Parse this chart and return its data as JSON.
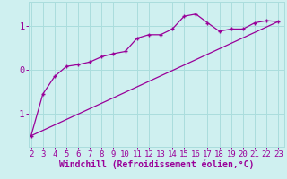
{
  "xlabel": "Windchill (Refroidissement éolien,°C)",
  "background_color": "#cff0f0",
  "line_color": "#990099",
  "grid_color": "#aadddd",
  "x_ticks": [
    2,
    3,
    4,
    5,
    6,
    7,
    8,
    9,
    10,
    11,
    12,
    13,
    14,
    15,
    16,
    17,
    18,
    19,
    20,
    21,
    22,
    23
  ],
  "curve1_x": [
    2,
    3,
    4,
    5,
    6,
    7,
    8,
    9,
    10,
    11,
    12,
    13,
    14,
    15,
    16,
    17,
    18,
    19,
    20,
    21,
    22,
    23
  ],
  "curve1_y": [
    -1.5,
    -0.55,
    -0.15,
    0.08,
    0.12,
    0.18,
    0.3,
    0.37,
    0.42,
    0.72,
    0.8,
    0.8,
    0.93,
    1.22,
    1.27,
    1.07,
    0.88,
    0.93,
    0.93,
    1.07,
    1.12,
    1.1
  ],
  "line2_x": [
    2,
    23
  ],
  "line2_y": [
    -1.5,
    1.1
  ],
  "ylim": [
    -1.75,
    1.55
  ],
  "xlim": [
    1.8,
    23.5
  ],
  "yticks": [
    -1,
    0,
    1
  ],
  "tick_label_size": 6.5,
  "xlabel_size": 7.0
}
